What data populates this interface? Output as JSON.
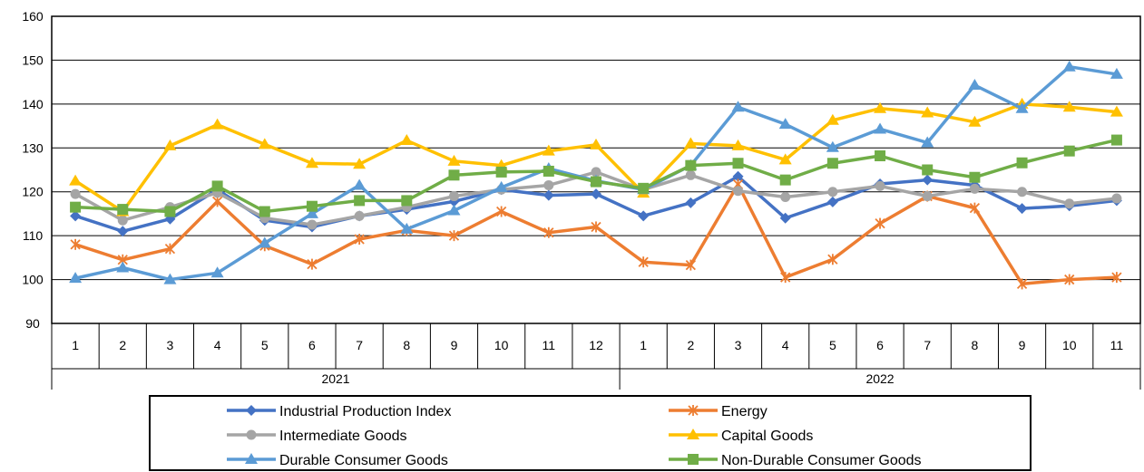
{
  "chart_data": {
    "type": "line",
    "title": "",
    "xlabel": "",
    "ylabel": "",
    "ylim": [
      90,
      160
    ],
    "yticks": [
      90,
      100,
      110,
      120,
      130,
      140,
      150,
      160
    ],
    "grid": true,
    "legend_position": "bottom",
    "categories": [
      "1",
      "2",
      "3",
      "4",
      "5",
      "6",
      "7",
      "8",
      "9",
      "10",
      "11",
      "12",
      "1",
      "2",
      "3",
      "4",
      "5",
      "6",
      "7",
      "8",
      "9",
      "10",
      "11"
    ],
    "groups": [
      {
        "label": "2021",
        "count": 12
      },
      {
        "label": "2022",
        "count": 11
      }
    ],
    "series": [
      {
        "name": "Industrial Production Index",
        "color": "#4472C4",
        "marker": "diamond",
        "values": [
          114.5,
          111.0,
          113.8,
          120.5,
          113.5,
          112.0,
          114.5,
          116.0,
          117.8,
          120.5,
          119.2,
          119.5,
          114.5,
          117.5,
          123.5,
          114.0,
          117.7,
          121.8,
          122.7,
          121.5,
          116.2,
          116.8,
          118.0
        ]
      },
      {
        "name": "Energy",
        "color": "#ED7D31",
        "marker": "star",
        "values": [
          108.0,
          104.5,
          107.0,
          117.8,
          107.7,
          103.5,
          109.2,
          111.2,
          110.0,
          115.5,
          110.7,
          112.0,
          104.0,
          103.3,
          121.7,
          100.5,
          104.6,
          112.8,
          119.0,
          116.3,
          99.0,
          100.0,
          100.5
        ]
      },
      {
        "name": "Intermediate Goods",
        "color": "#A5A5A5",
        "marker": "circle",
        "values": [
          119.5,
          113.5,
          116.5,
          119.8,
          114.0,
          112.5,
          114.5,
          116.5,
          119.0,
          120.5,
          121.5,
          124.5,
          120.5,
          123.8,
          120.2,
          118.8,
          120.0,
          121.3,
          119.0,
          120.7,
          120.0,
          117.3,
          118.5
        ]
      },
      {
        "name": "Capital Goods",
        "color": "#FFC000",
        "marker": "triangle",
        "values": [
          122.5,
          115.5,
          130.5,
          135.3,
          130.8,
          126.5,
          126.3,
          131.7,
          127.0,
          126.0,
          129.3,
          130.7,
          119.7,
          131.0,
          130.5,
          127.3,
          136.3,
          139.0,
          138.0,
          135.9,
          140.0,
          139.3,
          138.2
        ]
      },
      {
        "name": "Durable Consumer Goods",
        "color": "#5B9BD5",
        "marker": "triangle",
        "values": [
          100.3,
          102.7,
          100.0,
          101.5,
          108.3,
          115.0,
          121.5,
          111.5,
          115.7,
          121.0,
          125.3,
          122.5,
          120.5,
          126.0,
          139.3,
          135.4,
          130.1,
          134.3,
          131.2,
          144.3,
          139.0,
          148.5,
          146.8
        ]
      },
      {
        "name": "Non-Durable Consumer Goods",
        "color": "#70AD47",
        "marker": "square",
        "values": [
          116.5,
          116.0,
          115.5,
          121.3,
          115.5,
          116.7,
          118.0,
          118.0,
          123.8,
          124.5,
          124.7,
          122.3,
          120.8,
          126.0,
          126.5,
          122.7,
          126.5,
          128.2,
          125.0,
          123.3,
          126.6,
          129.3,
          131.8
        ]
      }
    ]
  }
}
